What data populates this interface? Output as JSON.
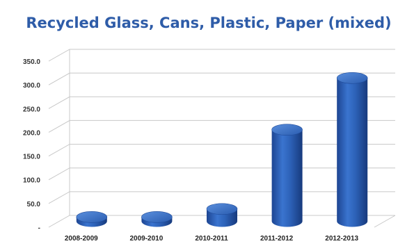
{
  "chart_data": {
    "type": "bar",
    "title": "Recycled Glass, Cans, Plastic, Paper (mixed)",
    "categories": [
      "2008-2009",
      "2009-2010",
      "2010-2011",
      "2011-2012",
      "2012-2013"
    ],
    "values": [
      9,
      9,
      26,
      193,
      302
    ],
    "ylim": [
      0,
      350
    ],
    "yticks": [
      "-",
      "50.0",
      "100.0",
      "150.0",
      "200.0",
      "250.0",
      "300.0",
      "350.0"
    ],
    "grid": true,
    "bar_color": "#2d62b8",
    "style": "3d-cylinder"
  }
}
